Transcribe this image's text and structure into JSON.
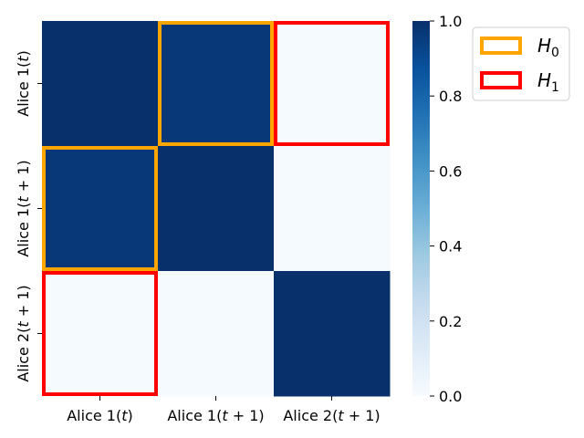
{
  "chart_data": {
    "type": "heatmap",
    "row_labels": [
      "Alice 1(t)",
      "Alice 1(t + 1)",
      "Alice 2(t + 1)"
    ],
    "col_labels": [
      "Alice 1(t)",
      "Alice 1(t + 1)",
      "Alice 2(t + 1)"
    ],
    "values": [
      [
        1.0,
        0.97,
        0.01
      ],
      [
        0.97,
        1.0,
        0.01
      ],
      [
        0.01,
        0.01,
        1.0
      ]
    ],
    "colorbar": {
      "range": [
        0.0,
        1.0
      ],
      "ticks": [
        "0.0",
        "0.2",
        "0.4",
        "0.6",
        "0.8",
        "1.0"
      ],
      "colormap": "Blues"
    },
    "highlights": [
      {
        "name": "H0",
        "color": "#FFA500",
        "cells": [
          [
            0,
            1
          ],
          [
            1,
            0
          ]
        ]
      },
      {
        "name": "H1",
        "color": "#FF0000",
        "cells": [
          [
            0,
            2
          ],
          [
            2,
            0
          ]
        ]
      }
    ],
    "legend": {
      "placement": "top-right",
      "entries": [
        {
          "label": "H",
          "sub": "0",
          "color": "#FFA500"
        },
        {
          "label": "H",
          "sub": "1",
          "color": "#FF0000"
        }
      ]
    }
  }
}
